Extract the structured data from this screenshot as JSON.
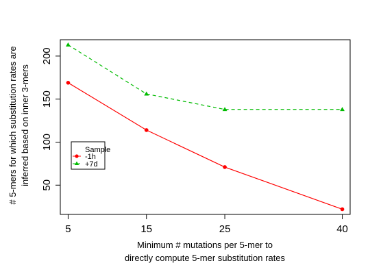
{
  "chart_data": {
    "type": "line",
    "title": "",
    "xlabel_lines": [
      "Minimum # mutations per 5-mer to",
      "directly compute 5-mer substitution rates"
    ],
    "ylabel_lines": [
      "# 5-mers for which substitution rates are",
      "inferred based on inner 3-mers"
    ],
    "x": [
      5,
      15,
      25,
      40
    ],
    "x_ticks": [
      "5",
      "15",
      "25",
      "40"
    ],
    "y_ticks": [
      "50",
      "100",
      "150",
      "200"
    ],
    "y_tick_values": [
      50,
      100,
      150,
      200
    ],
    "xlim": [
      4,
      41
    ],
    "ylim": [
      16,
      219
    ],
    "legend": {
      "title": "Sample",
      "position": "left"
    },
    "series": [
      {
        "name": "-1h",
        "values": [
          169,
          114,
          71,
          22
        ],
        "color": "#ff0000",
        "linestyle": "solid",
        "marker": "circle"
      },
      {
        "name": "+7d",
        "values": [
          213,
          156,
          138,
          138
        ],
        "color": "#00bb00",
        "linestyle": "dashed",
        "marker": "triangle"
      }
    ]
  }
}
